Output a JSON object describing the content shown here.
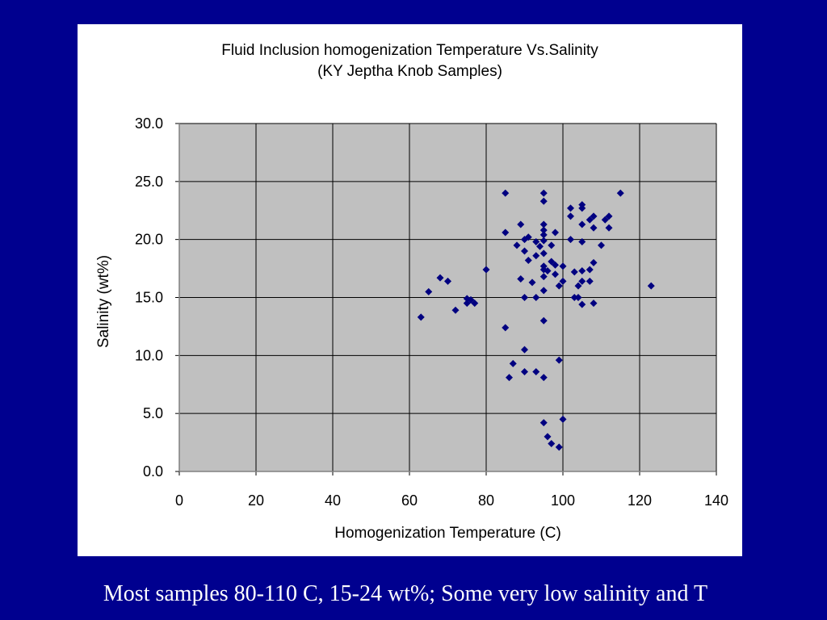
{
  "slide": {
    "background": "#00008f",
    "caption": "Most samples 80-110 C, 15-24 wt%; Some very low salinity and T"
  },
  "chart_data": {
    "type": "scatter",
    "title": "Fluid Inclusion homogenization Temperature Vs.Salinity",
    "subtitle": "(KY Jeptha Knob Samples)",
    "xlabel": "Homogenization Temperature (C)",
    "ylabel": "Salinity (wt%)",
    "xlim": [
      0,
      140
    ],
    "ylim": [
      0,
      30
    ],
    "xticks": [
      "0",
      "20",
      "40",
      "60",
      "80",
      "100",
      "120",
      "140"
    ],
    "yticks": [
      "0.0",
      "5.0",
      "10.0",
      "15.0",
      "20.0",
      "25.0",
      "30.0"
    ],
    "grid": true,
    "legend": "none",
    "plot_background": "#c0c0c0",
    "marker": "diamond",
    "marker_color": "#000080",
    "points": [
      [
        63,
        13.3
      ],
      [
        65,
        15.5
      ],
      [
        68,
        16.7
      ],
      [
        70,
        16.4
      ],
      [
        72,
        13.9
      ],
      [
        75,
        14.9
      ],
      [
        75,
        14.5
      ],
      [
        76,
        14.8
      ],
      [
        77,
        14.5
      ],
      [
        80,
        17.4
      ],
      [
        85,
        24.0
      ],
      [
        85,
        20.6
      ],
      [
        85,
        12.4
      ],
      [
        86,
        8.1
      ],
      [
        87,
        9.3
      ],
      [
        88,
        19.5
      ],
      [
        89,
        21.3
      ],
      [
        89,
        16.6
      ],
      [
        90,
        19.0
      ],
      [
        90,
        20.0
      ],
      [
        90,
        15.0
      ],
      [
        90,
        10.5
      ],
      [
        90,
        8.6
      ],
      [
        91,
        20.2
      ],
      [
        91,
        18.2
      ],
      [
        92,
        16.3
      ],
      [
        93,
        19.8
      ],
      [
        93,
        18.6
      ],
      [
        93,
        15.0
      ],
      [
        93,
        8.6
      ],
      [
        94,
        19.4
      ],
      [
        95,
        24.0
      ],
      [
        95,
        23.3
      ],
      [
        95,
        21.3
      ],
      [
        95,
        20.8
      ],
      [
        95,
        20.4
      ],
      [
        95,
        19.9
      ],
      [
        95,
        18.8
      ],
      [
        95,
        17.7
      ],
      [
        95,
        17.4
      ],
      [
        95,
        16.8
      ],
      [
        95,
        15.6
      ],
      [
        95,
        13.0
      ],
      [
        95,
        8.1
      ],
      [
        95,
        4.2
      ],
      [
        96,
        17.3
      ],
      [
        96,
        3.0
      ],
      [
        97,
        19.5
      ],
      [
        97,
        18.1
      ],
      [
        97,
        2.4
      ],
      [
        98,
        20.6
      ],
      [
        98,
        17.0
      ],
      [
        98,
        17.8
      ],
      [
        99,
        16.0
      ],
      [
        99,
        9.6
      ],
      [
        99,
        2.1
      ],
      [
        100,
        17.7
      ],
      [
        100,
        16.4
      ],
      [
        100,
        4.5
      ],
      [
        102,
        22.7
      ],
      [
        102,
        22.0
      ],
      [
        102,
        20.0
      ],
      [
        103,
        17.2
      ],
      [
        103,
        15.0
      ],
      [
        104,
        16.0
      ],
      [
        104,
        15.0
      ],
      [
        105,
        23.0
      ],
      [
        105,
        22.7
      ],
      [
        105,
        21.3
      ],
      [
        105,
        19.8
      ],
      [
        105,
        17.3
      ],
      [
        105,
        16.4
      ],
      [
        105,
        14.4
      ],
      [
        107,
        21.7
      ],
      [
        107,
        17.4
      ],
      [
        107,
        16.4
      ],
      [
        108,
        22.0
      ],
      [
        108,
        21.0
      ],
      [
        108,
        18.0
      ],
      [
        108,
        14.5
      ],
      [
        110,
        19.5
      ],
      [
        111,
        21.7
      ],
      [
        112,
        22.0
      ],
      [
        112,
        21.0
      ],
      [
        115,
        24.0
      ],
      [
        123,
        16.0
      ]
    ]
  }
}
